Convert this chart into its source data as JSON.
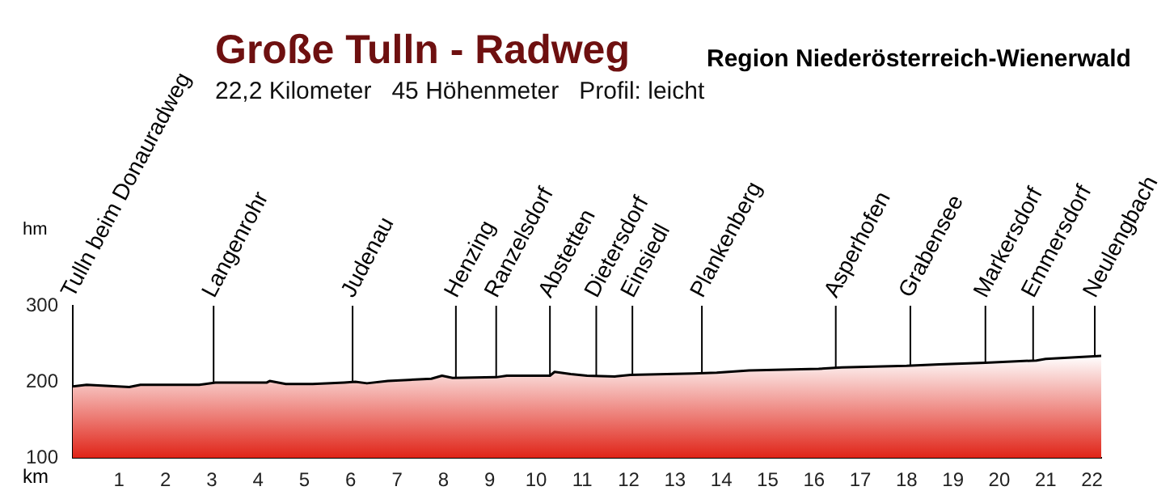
{
  "chart_data": {
    "type": "area",
    "title": "Große Tulln - Radweg",
    "subtitle": "Region Niederösterreich-Wienerwald",
    "annotations": [
      "22,2 Kilometer   45 Höhenmeter   Profil: leicht"
    ],
    "xlabel": "km",
    "ylabel": "hm",
    "xlim": [
      0,
      22.2
    ],
    "xticks": [
      1,
      2,
      3,
      4,
      5,
      6,
      7,
      8,
      9,
      10,
      11,
      12,
      13,
      14,
      15,
      16,
      17,
      18,
      19,
      20,
      21,
      22
    ],
    "ylim": [
      100,
      300
    ],
    "yticks": [
      100,
      200,
      300
    ],
    "grid": false,
    "legend": false,
    "series": [
      {
        "color": "#e02418",
        "x": [
          0,
          0.3,
          1.22,
          1.46,
          2.73,
          3.08,
          4.19,
          4.25,
          4.6,
          5.18,
          5.86,
          6.1,
          6.35,
          6.8,
          7.74,
          7.97,
          8.2,
          9.14,
          9.37,
          10.3,
          10.4,
          10.75,
          11.1,
          11.7,
          12.04,
          13.4,
          13.9,
          14.6,
          16.1,
          16.6,
          18.0,
          18.7,
          19.7,
          20.8,
          21.0,
          22.2
        ],
        "values": [
          194,
          196,
          193,
          196,
          196,
          199,
          199,
          201,
          197,
          197,
          199,
          200,
          198,
          201,
          204,
          208,
          205,
          206,
          208,
          208,
          213,
          210,
          208,
          207,
          209,
          211,
          212,
          215,
          217,
          219,
          221,
          223,
          225,
          228,
          230,
          234
        ]
      }
    ],
    "ref_lines": [
      {
        "axis": "x",
        "value": 0,
        "label": "Tulln beim Donauradweg"
      },
      {
        "axis": "x",
        "value": 3.04,
        "label": "Langenrohr"
      },
      {
        "axis": "x",
        "value": 6.04,
        "label": "Judenau"
      },
      {
        "axis": "x",
        "value": 8.27,
        "label": "Henzing"
      },
      {
        "axis": "x",
        "value": 9.14,
        "label": "Ranzelsdorf"
      },
      {
        "axis": "x",
        "value": 10.3,
        "label": "Abstetten"
      },
      {
        "axis": "x",
        "value": 11.3,
        "label": "Dietersdorf"
      },
      {
        "axis": "x",
        "value": 12.08,
        "label": "Einsiedl"
      },
      {
        "axis": "x",
        "value": 13.58,
        "label": "Plankenberg"
      },
      {
        "axis": "x",
        "value": 16.47,
        "label": "Asperhofen"
      },
      {
        "axis": "x",
        "value": 18.08,
        "label": "Grabensee"
      },
      {
        "axis": "x",
        "value": 19.7,
        "label": "Markersdorf"
      },
      {
        "axis": "x",
        "value": 20.73,
        "label": "Emmersdorf"
      },
      {
        "axis": "x",
        "value": 22.06,
        "label": "Neulengbach"
      }
    ]
  }
}
